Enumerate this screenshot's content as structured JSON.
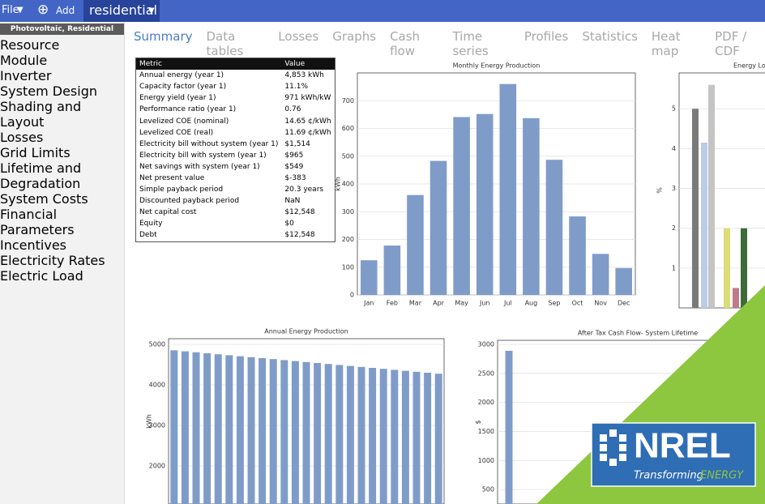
{
  "toolbar": {
    "file": "File",
    "add": "Add",
    "case": "residential"
  },
  "sidebar": {
    "header": "Photovoltaic, Residential",
    "items": [
      "Location and Resource",
      "Module",
      "Inverter",
      "System Design",
      "Shading and Layout",
      "Losses",
      "Grid Limits",
      "Lifetime and Degradation",
      "System Costs",
      "Financial Parameters",
      "Incentives",
      "Electricity Rates",
      "Electric Load"
    ]
  },
  "tabs": [
    "Summary",
    "Data tables",
    "Losses",
    "Graphs",
    "Cash flow",
    "Time series",
    "Profiles",
    "Statistics",
    "Heat map",
    "PDF / CDF"
  ],
  "metrics_table": {
    "header": [
      "Metric",
      "Value"
    ],
    "rows": [
      [
        "Annual energy (year 1)",
        "4,853 kWh"
      ],
      [
        "Capacity factor (year 1)",
        "11.1%"
      ],
      [
        "Energy yield (year 1)",
        "971 kWh/kW"
      ],
      [
        "Performance ratio (year 1)",
        "0.76"
      ],
      [
        "Levelized COE (nominal)",
        "14.65 ¢/kWh"
      ],
      [
        "Levelized COE (real)",
        "11.69 ¢/kWh"
      ],
      [
        "Electricity bill without system (year 1)",
        "$1,514"
      ],
      [
        "Electricity bill with system (year 1)",
        "$965"
      ],
      [
        "Net savings with system (year 1)",
        "$549"
      ],
      [
        "Net present value",
        "$-383"
      ],
      [
        "Simple payback period",
        "20.3 years"
      ],
      [
        "Discounted payback period",
        "NaN"
      ],
      [
        "Net capital cost",
        "$12,548"
      ],
      [
        "Equity",
        "$0"
      ],
      [
        "Debt",
        "$12,548"
      ]
    ]
  },
  "chart_data": [
    {
      "type": "bar",
      "title": "Monthly Energy Production",
      "ylabel": "kWh",
      "categories": [
        "Jan",
        "Feb",
        "Mar",
        "Apr",
        "May",
        "Jun",
        "Jul",
        "Aug",
        "Sep",
        "Oct",
        "Nov",
        "Dec"
      ],
      "values": [
        125,
        178,
        360,
        483,
        641,
        652,
        760,
        637,
        487,
        283,
        148,
        97
      ],
      "color": "#7f9cc9",
      "ylim": [
        0,
        800
      ],
      "yticks": [
        0,
        100,
        200,
        300,
        400,
        500,
        600,
        700
      ],
      "grid": true
    },
    {
      "type": "bar",
      "title": "Energy Lo",
      "ylabel": "%",
      "categories": [
        null,
        null,
        null,
        null,
        null,
        null
      ],
      "values": [
        5.0,
        4.15,
        5.6,
        2.0,
        0.5,
        2.0
      ],
      "colors": [
        "#7a7a7a",
        "#b9cde6",
        "#c4c4c4",
        "#dcdc78",
        "#c07a8a",
        "#3e6b3a"
      ],
      "ylim": [
        0,
        5.9
      ],
      "yticks": [
        1,
        2,
        3,
        4,
        5
      ],
      "grid": true
    },
    {
      "type": "bar",
      "title": "Annual Energy Production",
      "ylabel": "kWh",
      "categories": [
        null,
        null,
        null,
        null,
        null,
        null,
        null,
        null,
        null,
        null,
        null,
        null,
        null,
        null,
        null,
        null,
        null,
        null,
        null,
        null,
        null,
        null,
        null,
        null,
        null
      ],
      "values": [
        4853,
        4829,
        4805,
        4780,
        4756,
        4732,
        4708,
        4684,
        4660,
        4636,
        4612,
        4588,
        4564,
        4540,
        4516,
        4492,
        4468,
        4444,
        4420,
        4396,
        4372,
        4348,
        4324,
        4300,
        4276
      ],
      "color": "#7f9cc9",
      "ylim": [
        1060,
        5140
      ],
      "yticks": [
        2000,
        3000,
        4000,
        5000
      ],
      "grid": true
    },
    {
      "type": "bar",
      "title": "After Tax Cash Flow- System Lifetime",
      "ylabel": "$",
      "categories": [
        null
      ],
      "values": [
        2890
      ],
      "color": "#7f9cc9",
      "ylim": [
        250,
        3070
      ],
      "yticks": [
        500,
        1000,
        1500,
        2000,
        2500,
        3000
      ],
      "grid": true
    }
  ],
  "logo": {
    "name": "NREL",
    "tagline": "Transforming",
    "tagline_accent": "ENERGY"
  }
}
